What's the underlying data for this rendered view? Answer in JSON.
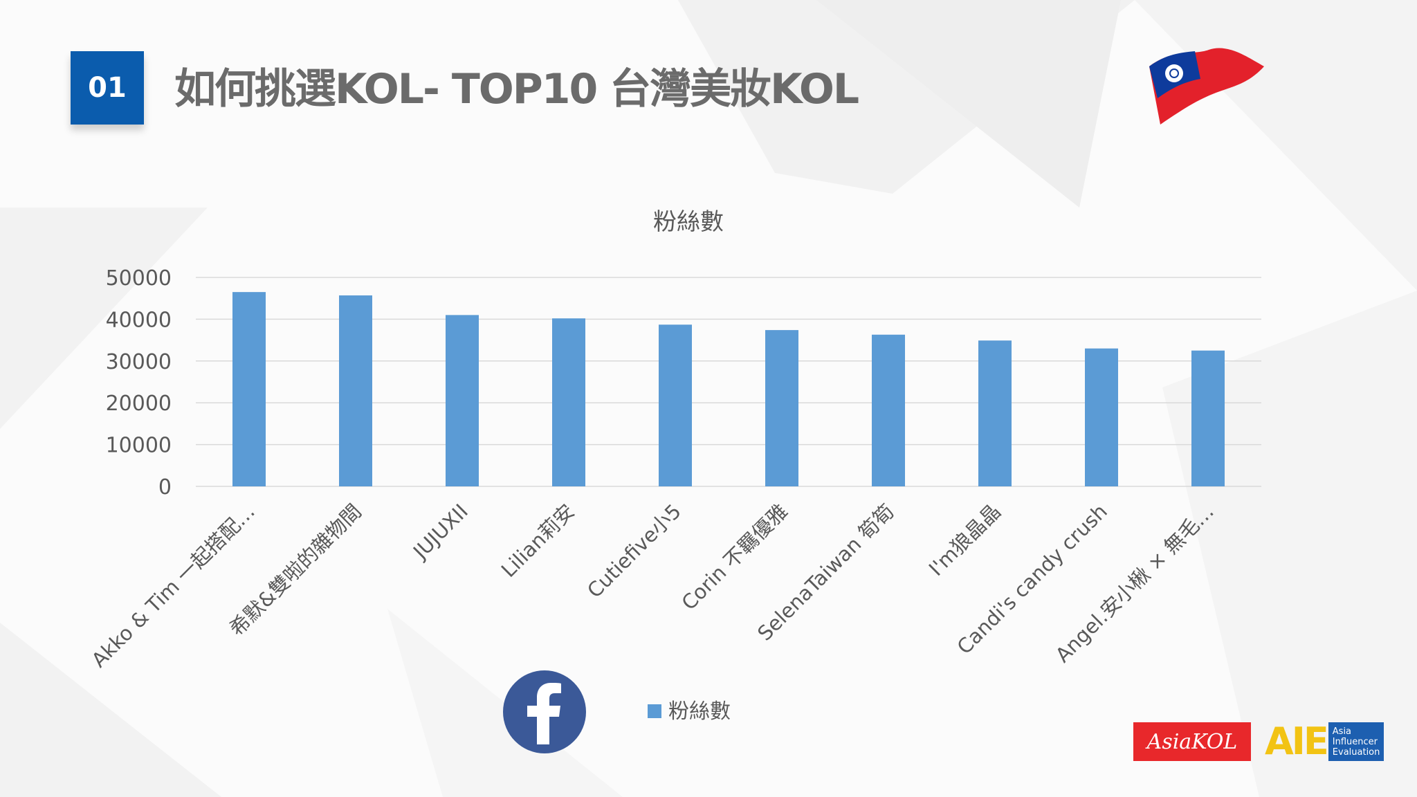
{
  "slide": {
    "number": "01",
    "title": "如何挑選KOL- TOP10 台灣美妝KOL"
  },
  "icons": {
    "flag": "taiwan-flag-icon",
    "facebook": "facebook-icon"
  },
  "logos": {
    "akol_text": "AsiaKOL",
    "aie_letters": "AIE",
    "aie_lines": [
      "Asia",
      "Influencer",
      "Evaluation"
    ]
  },
  "colors": {
    "badge": "#0b5cad",
    "bar": "#5b9bd5",
    "title": "#6b6b6b"
  },
  "chart_data": {
    "type": "bar",
    "title": "粉絲數",
    "categories": [
      "Akko & Tim 一起搭配…",
      "希默&雙啦的雜物間",
      "JUJUXII",
      "Lilian莉安",
      "Cutiefive小5",
      "Corin 不羈優雅",
      "SelenaTaiwan 筍筍",
      "I'm狼晶晶",
      "Candi's candy crush",
      "Angel.安小楸 × 無毛…"
    ],
    "series": [
      {
        "name": "粉絲數",
        "values": [
          46500,
          45700,
          41000,
          40200,
          38700,
          37400,
          36300,
          34900,
          33000,
          32500
        ]
      }
    ],
    "yticks": [
      "0",
      "10000",
      "20000",
      "30000",
      "40000",
      "50000"
    ],
    "ylim": [
      0,
      50000
    ],
    "grid": true,
    "legend": "bottom"
  }
}
